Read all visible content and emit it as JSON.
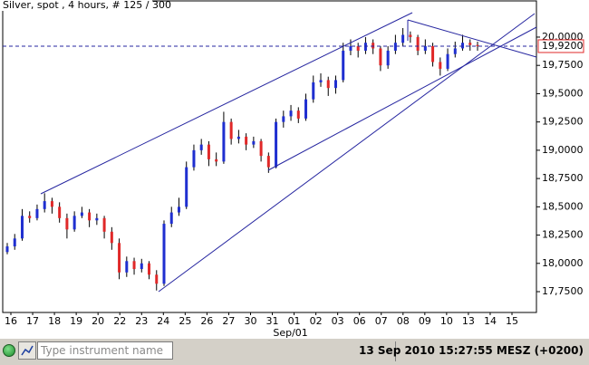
{
  "chart_data": {
    "type": "candlestick",
    "title": "Silver, spot , 4 hours, # 125 / 300",
    "up_color": "#1f2fd0",
    "down_color": "#e02828",
    "ylim": [
      17.566,
      20.328
    ],
    "yticks": [
      {
        "value": 17.75,
        "label": "17,7500"
      },
      {
        "value": 18.0,
        "label": "18,0000"
      },
      {
        "value": 18.25,
        "label": "18,2500"
      },
      {
        "value": 18.5,
        "label": "18,5000"
      },
      {
        "value": 18.75,
        "label": "18,7500"
      },
      {
        "value": 19.0,
        "label": "19,0000"
      },
      {
        "value": 19.25,
        "label": "19,2500"
      },
      {
        "value": 19.5,
        "label": "19,5000"
      },
      {
        "value": 19.75,
        "label": "19,7500"
      },
      {
        "value": 20.0,
        "label": "20,0000"
      }
    ],
    "current_price": {
      "value": 19.92,
      "label": "19,9200"
    },
    "x_labels": [
      "16",
      "17",
      "18",
      "19",
      "20",
      "22",
      "23",
      "24",
      "25",
      "26",
      "27",
      "30",
      "31",
      "01",
      "02",
      "03",
      "06",
      "07",
      "08",
      "09",
      "10",
      "13",
      "14",
      "15"
    ],
    "x_group_label": "Sep/01",
    "ohlc": [
      [
        18.1,
        18.18,
        18.08,
        18.15
      ],
      [
        18.15,
        18.26,
        18.12,
        18.22
      ],
      [
        18.22,
        18.48,
        18.2,
        18.42
      ],
      [
        18.42,
        18.46,
        18.36,
        18.4
      ],
      [
        18.4,
        18.52,
        18.38,
        18.48
      ],
      [
        18.48,
        18.62,
        18.45,
        18.55
      ],
      [
        18.55,
        18.58,
        18.44,
        18.5
      ],
      [
        18.5,
        18.54,
        18.36,
        18.4
      ],
      [
        18.4,
        18.44,
        18.22,
        18.3
      ],
      [
        18.3,
        18.46,
        18.28,
        18.42
      ],
      [
        18.42,
        18.5,
        18.4,
        18.45
      ],
      [
        18.45,
        18.48,
        18.32,
        18.38
      ],
      [
        18.38,
        18.44,
        18.34,
        18.4
      ],
      [
        18.4,
        18.42,
        18.22,
        18.28
      ],
      [
        18.28,
        18.32,
        18.12,
        18.18
      ],
      [
        18.18,
        18.22,
        17.86,
        17.92
      ],
      [
        17.92,
        18.06,
        17.88,
        18.02
      ],
      [
        18.02,
        18.05,
        17.9,
        17.95
      ],
      [
        17.95,
        18.04,
        17.92,
        18.0
      ],
      [
        18.0,
        18.02,
        17.86,
        17.9
      ],
      [
        17.9,
        17.94,
        17.76,
        17.82
      ],
      [
        17.82,
        18.38,
        17.8,
        18.35
      ],
      [
        18.35,
        18.5,
        18.32,
        18.45
      ],
      [
        18.45,
        18.58,
        18.42,
        18.5
      ],
      [
        18.5,
        18.9,
        18.48,
        18.85
      ],
      [
        18.85,
        19.05,
        18.82,
        19.0
      ],
      [
        19.0,
        19.1,
        18.96,
        19.05
      ],
      [
        19.05,
        19.08,
        18.86,
        18.92
      ],
      [
        18.92,
        18.98,
        18.86,
        18.9
      ],
      [
        18.9,
        19.34,
        18.88,
        19.25
      ],
      [
        19.25,
        19.28,
        19.05,
        19.1
      ],
      [
        19.1,
        19.18,
        19.06,
        19.12
      ],
      [
        19.12,
        19.15,
        19.0,
        19.05
      ],
      [
        19.05,
        19.12,
        19.02,
        19.08
      ],
      [
        19.08,
        19.1,
        18.9,
        18.95
      ],
      [
        18.95,
        18.98,
        18.8,
        18.85
      ],
      [
        18.85,
        19.28,
        18.84,
        19.25
      ],
      [
        19.25,
        19.35,
        19.2,
        19.3
      ],
      [
        19.3,
        19.4,
        19.26,
        19.35
      ],
      [
        19.35,
        19.38,
        19.24,
        19.28
      ],
      [
        19.28,
        19.5,
        19.26,
        19.45
      ],
      [
        19.45,
        19.66,
        19.42,
        19.6
      ],
      [
        19.6,
        19.68,
        19.56,
        19.62
      ],
      [
        19.62,
        19.65,
        19.48,
        19.55
      ],
      [
        19.55,
        19.66,
        19.5,
        19.62
      ],
      [
        19.62,
        19.95,
        19.6,
        19.88
      ],
      [
        19.88,
        19.98,
        19.84,
        19.92
      ],
      [
        19.92,
        19.95,
        19.82,
        19.88
      ],
      [
        19.88,
        20.0,
        19.85,
        19.95
      ],
      [
        19.95,
        19.98,
        19.85,
        19.9
      ],
      [
        19.9,
        19.92,
        19.7,
        19.75
      ],
      [
        19.75,
        19.92,
        19.72,
        19.88
      ],
      [
        19.88,
        20.02,
        19.85,
        19.95
      ],
      [
        19.95,
        20.08,
        19.92,
        20.02
      ],
      [
        20.02,
        20.05,
        19.95,
        20.0
      ],
      [
        20.0,
        20.02,
        19.84,
        19.88
      ],
      [
        19.88,
        19.98,
        19.85,
        19.92
      ],
      [
        19.92,
        19.95,
        19.74,
        19.78
      ],
      [
        19.78,
        19.82,
        19.66,
        19.72
      ],
      [
        19.72,
        19.9,
        19.7,
        19.85
      ],
      [
        19.85,
        19.96,
        19.82,
        19.9
      ],
      [
        19.9,
        20.02,
        19.88,
        19.95
      ],
      [
        19.95,
        19.98,
        19.88,
        19.93
      ],
      [
        19.93,
        19.96,
        19.88,
        19.92
      ]
    ]
  },
  "toolbar": {
    "placeholder": "Type instrument name",
    "datetime": "13 Sep 2010 15:27:55 MESZ (+0200)"
  }
}
